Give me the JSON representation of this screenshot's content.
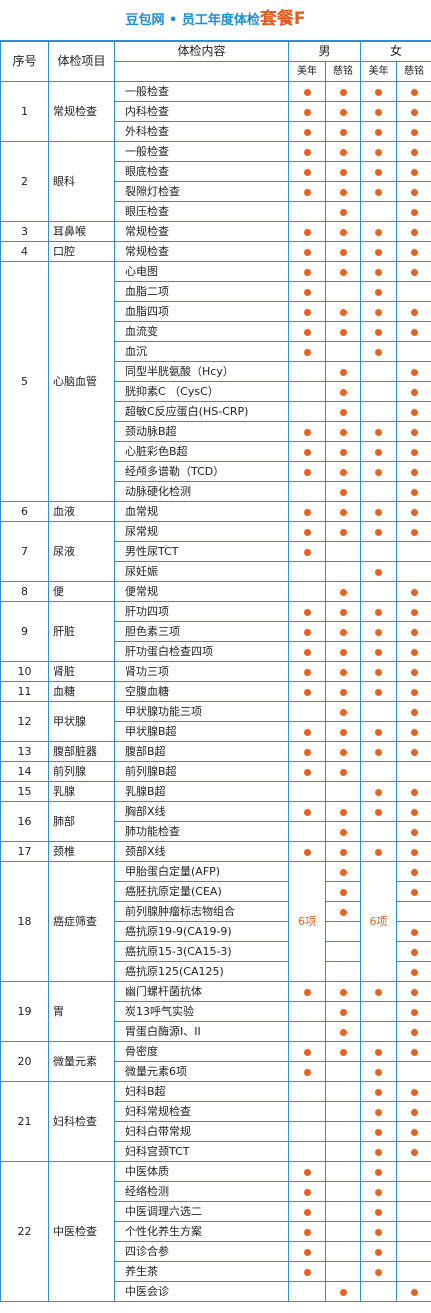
{
  "header": {
    "title_main": "豆包网 • 员工年度体检",
    "title_pkg": "套餐F"
  },
  "colors": {
    "accent": "#1a8fd8",
    "dot": "#e8621f",
    "border": "#2b8fd6"
  },
  "columns": {
    "seq": "序号",
    "project": "体检项目",
    "content": "体检内容",
    "male": "男",
    "female": "女",
    "sub": [
      "美年",
      "慈铭",
      "美年",
      "慈铭"
    ]
  },
  "groups": [
    {
      "seq": "1",
      "name": "常规检查",
      "items": [
        {
          "name": "一般检查",
          "marks": [
            1,
            1,
            1,
            1
          ]
        },
        {
          "name": "内科检查",
          "marks": [
            1,
            1,
            1,
            1
          ]
        },
        {
          "name": "外科检查",
          "marks": [
            1,
            1,
            1,
            1
          ]
        }
      ]
    },
    {
      "seq": "2",
      "name": "眼科",
      "items": [
        {
          "name": "一般检查",
          "marks": [
            1,
            1,
            1,
            1
          ]
        },
        {
          "name": "眼底检查",
          "marks": [
            1,
            1,
            1,
            1
          ]
        },
        {
          "name": "裂隙灯检查",
          "marks": [
            1,
            1,
            1,
            1
          ]
        },
        {
          "name": "眼压检查",
          "marks": [
            0,
            1,
            0,
            1
          ]
        }
      ]
    },
    {
      "seq": "3",
      "name": "耳鼻喉",
      "items": [
        {
          "name": "常规检查",
          "marks": [
            1,
            1,
            1,
            1
          ]
        }
      ]
    },
    {
      "seq": "4",
      "name": "口腔",
      "items": [
        {
          "name": "常规检查",
          "marks": [
            1,
            1,
            1,
            1
          ]
        }
      ]
    },
    {
      "seq": "5",
      "name": "心脑血管",
      "items": [
        {
          "name": "心电图",
          "marks": [
            1,
            1,
            1,
            1
          ]
        },
        {
          "name": "血脂二项",
          "marks": [
            1,
            0,
            1,
            0
          ]
        },
        {
          "name": "血脂四项",
          "marks": [
            1,
            1,
            1,
            1
          ]
        },
        {
          "name": "血流变",
          "marks": [
            1,
            1,
            1,
            1
          ]
        },
        {
          "name": "血沉",
          "marks": [
            1,
            0,
            1,
            0
          ]
        },
        {
          "name": "同型半胱氨酸（Hcy）",
          "marks": [
            0,
            1,
            0,
            1
          ]
        },
        {
          "name": "胱抑素C （CysC）",
          "marks": [
            0,
            1,
            0,
            1
          ]
        },
        {
          "name": "超敏C反应蛋白(HS-CRP)",
          "marks": [
            0,
            1,
            0,
            1
          ]
        },
        {
          "name": "颈动脉B超",
          "marks": [
            1,
            1,
            1,
            1
          ]
        },
        {
          "name": "心脏彩色B超",
          "marks": [
            1,
            1,
            1,
            1
          ]
        },
        {
          "name": "经颅多谱勒（TCD）",
          "marks": [
            1,
            1,
            1,
            1
          ]
        },
        {
          "name": "动脉硬化检测",
          "marks": [
            0,
            1,
            0,
            1
          ]
        }
      ]
    },
    {
      "seq": "6",
      "name": "血液",
      "items": [
        {
          "name": "血常规",
          "marks": [
            1,
            1,
            1,
            1
          ]
        }
      ]
    },
    {
      "seq": "7",
      "name": "尿液",
      "items": [
        {
          "name": "尿常规",
          "marks": [
            1,
            1,
            1,
            1
          ]
        },
        {
          "name": "男性尿TCT",
          "marks": [
            1,
            0,
            0,
            0
          ]
        },
        {
          "name": "尿妊娠",
          "marks": [
            0,
            0,
            1,
            0
          ]
        }
      ]
    },
    {
      "seq": "8",
      "name": "便",
      "items": [
        {
          "name": "便常规",
          "marks": [
            0,
            1,
            0,
            1
          ]
        }
      ]
    },
    {
      "seq": "9",
      "name": "肝脏",
      "items": [
        {
          "name": "肝功四项",
          "marks": [
            1,
            1,
            1,
            1
          ]
        },
        {
          "name": "胆色素三项",
          "marks": [
            1,
            1,
            1,
            1
          ]
        },
        {
          "name": "肝功蛋白检查四项",
          "marks": [
            1,
            1,
            1,
            1
          ]
        }
      ]
    },
    {
      "seq": "10",
      "name": "肾脏",
      "items": [
        {
          "name": "肾功三项",
          "marks": [
            1,
            1,
            1,
            1
          ]
        }
      ]
    },
    {
      "seq": "11",
      "name": "血糖",
      "items": [
        {
          "name": "空腹血糖",
          "marks": [
            1,
            1,
            1,
            1
          ]
        }
      ]
    },
    {
      "seq": "12",
      "name": "甲状腺",
      "items": [
        {
          "name": "甲状腺功能三项",
          "marks": [
            0,
            1,
            0,
            1
          ]
        },
        {
          "name": "甲状腺B超",
          "marks": [
            1,
            1,
            1,
            1
          ]
        }
      ]
    },
    {
      "seq": "13",
      "name": "腹部脏器",
      "items": [
        {
          "name": "腹部B超",
          "marks": [
            1,
            1,
            1,
            1
          ]
        }
      ]
    },
    {
      "seq": "14",
      "name": "前列腺",
      "items": [
        {
          "name": "前列腺B超",
          "marks": [
            1,
            1,
            0,
            0
          ]
        }
      ]
    },
    {
      "seq": "15",
      "name": "乳腺",
      "items": [
        {
          "name": "乳腺B超",
          "marks": [
            0,
            0,
            1,
            1
          ]
        }
      ]
    },
    {
      "seq": "16",
      "name": "肺部",
      "items": [
        {
          "name": "胸部X线",
          "marks": [
            1,
            1,
            1,
            1
          ]
        },
        {
          "name": "肺功能检查",
          "marks": [
            0,
            1,
            0,
            1
          ]
        }
      ]
    },
    {
      "seq": "17",
      "name": "颈椎",
      "items": [
        {
          "name": "颈部X线",
          "marks": [
            1,
            1,
            1,
            1
          ]
        }
      ]
    },
    {
      "seq": "18",
      "name": "癌症筛查",
      "count_label": "6项",
      "items": [
        {
          "name": "甲胎蛋白定量(AFP)",
          "marks": [
            0,
            1,
            0,
            1
          ]
        },
        {
          "name": "癌胚抗原定量(CEA)",
          "marks": [
            0,
            1,
            0,
            1
          ]
        },
        {
          "name": "前列腺肿瘤标志物组合",
          "marks": [
            0,
            1,
            0,
            0
          ]
        },
        {
          "name": "癌抗原19-9(CA19-9)",
          "marks": [
            0,
            0,
            0,
            1
          ]
        },
        {
          "name": "癌抗原15-3(CA15-3)",
          "marks": [
            0,
            0,
            0,
            1
          ]
        },
        {
          "name": "癌抗原125(CA125)",
          "marks": [
            0,
            0,
            0,
            1
          ]
        }
      ]
    },
    {
      "seq": "19",
      "name": "胃",
      "items": [
        {
          "name": "幽门螺杆菌抗体",
          "marks": [
            1,
            1,
            1,
            1
          ]
        },
        {
          "name": "炭13呼气实验",
          "marks": [
            0,
            1,
            0,
            1
          ]
        },
        {
          "name": "胃蛋白酶源I、II",
          "marks": [
            0,
            1,
            0,
            1
          ]
        }
      ]
    },
    {
      "seq": "20",
      "name": "微量元素",
      "items": [
        {
          "name": "骨密度",
          "marks": [
            1,
            1,
            1,
            1
          ]
        },
        {
          "name": "微量元素6项",
          "marks": [
            1,
            0,
            1,
            0
          ]
        }
      ]
    },
    {
      "seq": "21",
      "name": "妇科检查",
      "items": [
        {
          "name": "妇科B超",
          "marks": [
            0,
            0,
            1,
            1
          ]
        },
        {
          "name": "妇科常规检查",
          "marks": [
            0,
            0,
            1,
            1
          ]
        },
        {
          "name": "妇科白带常规",
          "marks": [
            0,
            0,
            1,
            1
          ]
        },
        {
          "name": "妇科宫颈TCT",
          "marks": [
            0,
            0,
            1,
            1
          ]
        }
      ]
    },
    {
      "seq": "22",
      "name": "中医检查",
      "items": [
        {
          "name": "中医体质",
          "marks": [
            1,
            0,
            1,
            0
          ]
        },
        {
          "name": "经络检测",
          "marks": [
            1,
            0,
            1,
            0
          ]
        },
        {
          "name": "中医调理六选二",
          "marks": [
            1,
            0,
            1,
            0
          ]
        },
        {
          "name": "个性化养生方案",
          "marks": [
            1,
            0,
            1,
            0
          ]
        },
        {
          "name": "四诊合参",
          "marks": [
            1,
            0,
            1,
            0
          ]
        },
        {
          "name": "养生茶",
          "marks": [
            1,
            0,
            1,
            0
          ]
        },
        {
          "name": "中医会诊",
          "marks": [
            0,
            1,
            0,
            1
          ]
        }
      ]
    }
  ]
}
